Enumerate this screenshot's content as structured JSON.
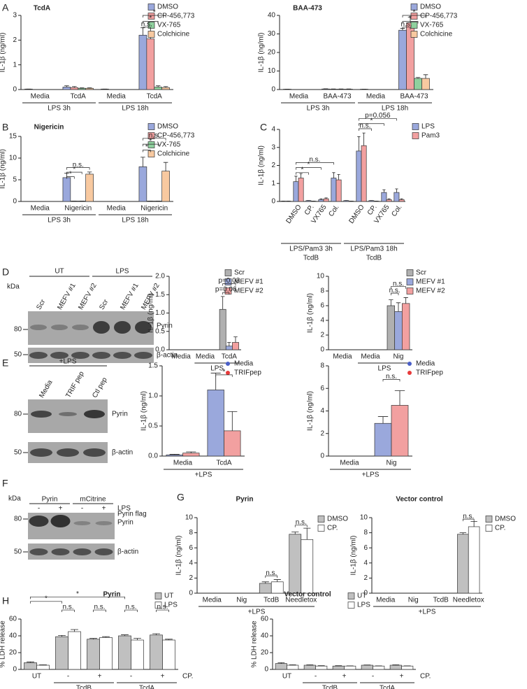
{
  "panel_letters": [
    "A",
    "B",
    "C",
    "D",
    "E",
    "F",
    "G",
    "H"
  ],
  "blots": {
    "D": {
      "headers": [
        "UT",
        "LPS"
      ],
      "lanes": [
        "Scr",
        "MEFV #1",
        "MEFV #2",
        "Scr",
        "MEFV #1",
        "MEFV #2"
      ],
      "kda_label": "kDa",
      "markers": [
        "80",
        "50"
      ],
      "bands": [
        "Pyrin",
        "β-actin"
      ]
    },
    "E": {
      "header": "+LPS",
      "lanes": [
        "Media",
        "TRIF pep",
        "Ctl pep"
      ],
      "markers": [
        "80",
        "50"
      ],
      "bands": [
        "Pyrin",
        "β-actin"
      ]
    },
    "F": {
      "headers": [
        "Pyrin",
        "mCitrine"
      ],
      "kda_label": "kDa",
      "treatment": [
        "-",
        "+",
        "-",
        "+"
      ],
      "treatment_label": "LPS",
      "markers": [
        "80",
        "50"
      ],
      "bands": [
        "Pyrin flag",
        "Pyrin",
        "β-actin"
      ]
    }
  },
  "chart_data": [
    {
      "type": "bar",
      "title": "TcdA",
      "ylabel": "IL-1β (ng/ml)",
      "ylim": [
        0,
        3
      ],
      "yticks": [
        0,
        1,
        2,
        3
      ],
      "groups": [
        {
          "label": "LPS 3h",
          "categories": [
            "Media",
            "TcdA"
          ]
        },
        {
          "label": "LPS 18h",
          "categories": [
            "Media",
            "TcdA"
          ]
        }
      ],
      "series": [
        {
          "name": "DMSO",
          "color": "#9aa8dc",
          "values": [
            0.02,
            0.1,
            0.02,
            2.2
          ],
          "errors": [
            0,
            0.05,
            0,
            0.3
          ]
        },
        {
          "name": "CP-456,773",
          "color": "#f2a0a0",
          "values": [
            0,
            0.08,
            0,
            2.05
          ],
          "errors": [
            0,
            0.04,
            0,
            0.5
          ]
        },
        {
          "name": "VX-765",
          "color": "#8fd19e",
          "values": [
            0,
            0.05,
            0,
            0.1
          ],
          "errors": [
            0,
            0.02,
            0,
            0.05
          ]
        },
        {
          "name": "Colchicine",
          "color": "#f8c9a0",
          "values": [
            0,
            0.05,
            0,
            0.08
          ],
          "errors": [
            0,
            0.02,
            0,
            0.04
          ]
        }
      ],
      "annotations": [
        "*",
        "*",
        "n.s."
      ]
    },
    {
      "type": "bar",
      "title": "BAA-473",
      "ylabel": "IL-1β (ng/ml)",
      "ylim": [
        0,
        40
      ],
      "yticks": [
        0,
        10,
        20,
        30,
        40
      ],
      "groups": [
        {
          "label": "LPS 3h",
          "categories": [
            "Media",
            "BAA-473"
          ]
        },
        {
          "label": "LPS 18h",
          "categories": [
            "Media",
            "BAA-473"
          ]
        }
      ],
      "series": [
        {
          "name": "DMSO",
          "color": "#9aa8dc",
          "values": [
            0.2,
            0.3,
            0.2,
            32
          ],
          "errors": [
            0,
            0.1,
            0,
            1
          ]
        },
        {
          "name": "CP-456,773",
          "color": "#f2a0a0",
          "values": [
            0,
            0.2,
            0,
            36
          ],
          "errors": [
            0,
            0.1,
            0,
            3
          ]
        },
        {
          "name": "VX-765",
          "color": "#8fd19e",
          "values": [
            0,
            0.2,
            0,
            6
          ],
          "errors": [
            0,
            0.1,
            0,
            0.5
          ]
        },
        {
          "name": "Colchicine",
          "color": "#f8c9a0",
          "values": [
            0,
            0.2,
            0,
            6
          ],
          "errors": [
            0,
            0.1,
            0,
            2
          ]
        }
      ],
      "annotations": [
        "*",
        "*",
        "n.s."
      ]
    },
    {
      "type": "bar",
      "title": "Nigericin",
      "ylabel": "IL-1β (ng/ml)",
      "ylim": [
        0,
        15
      ],
      "yticks": [
        0,
        5,
        10,
        15
      ],
      "groups": [
        {
          "label": "LPS 3h",
          "categories": [
            "Media",
            "Nigericin"
          ]
        },
        {
          "label": "LPS 18h",
          "categories": [
            "Media",
            "Nigericin"
          ]
        }
      ],
      "series": [
        {
          "name": "DMSO",
          "color": "#9aa8dc",
          "values": [
            0,
            5.5,
            0,
            8
          ],
          "errors": [
            0,
            1,
            0,
            2.2
          ]
        },
        {
          "name": "CP-456,773",
          "color": "#f2a0a0",
          "values": [
            0,
            0.1,
            0,
            0.1
          ],
          "errors": [
            0,
            0,
            0,
            0
          ]
        },
        {
          "name": "VX-765",
          "color": "#8fd19e",
          "values": [
            0,
            0.1,
            0,
            0.1
          ],
          "errors": [
            0,
            0,
            0,
            0
          ]
        },
        {
          "name": "Colchicine",
          "color": "#f8c9a0",
          "values": [
            0,
            6.3,
            0,
            7
          ],
          "errors": [
            0,
            0.5,
            0,
            2
          ]
        }
      ],
      "annotations": [
        "n.s.",
        "*",
        "*",
        "n.s.",
        "*",
        "*"
      ]
    },
    {
      "type": "bar",
      "ylabel": "IL-1β (ng/ml)",
      "ylim": [
        0,
        4
      ],
      "yticks": [
        0,
        1,
        2,
        3,
        4
      ],
      "groups": [
        {
          "label": "LPS/Pam3 3h",
          "sublabel": "TcdB",
          "categories": [
            null,
            "DMSO",
            "CP.",
            "VX765",
            "Col."
          ]
        },
        {
          "label": "LPS/Pam3 18h",
          "sublabel": "TcdB",
          "categories": [
            null,
            "DMSO",
            "CP.",
            "VX765",
            "Col."
          ]
        }
      ],
      "series": [
        {
          "name": "LPS",
          "color": "#9aa8dc",
          "values": [
            0.02,
            1.1,
            0.05,
            0.1,
            1.3,
            0.05,
            2.8,
            0.05,
            0.5,
            0.5
          ],
          "errors": [
            0,
            0.3,
            0,
            0.05,
            0.3,
            0,
            0.8,
            0,
            0.15,
            0.2
          ]
        },
        {
          "name": "Pam3",
          "color": "#f2a0a0",
          "values": [
            0.02,
            1.3,
            0.02,
            0.15,
            1.2,
            0.02,
            3.1,
            0.02,
            0.1,
            0.1
          ],
          "errors": [
            0,
            0.25,
            0,
            0.05,
            0.3,
            0,
            0.7,
            0,
            0.05,
            0.05
          ]
        }
      ],
      "annotations": [
        "*",
        "*",
        "n.s.",
        "p=0.056",
        "*",
        "n.s."
      ]
    },
    {
      "type": "bar",
      "ylabel": "IL-1β (ng/ml)",
      "ylim": [
        0,
        2
      ],
      "yticks": [
        {
          "value": 0,
          "label": "0.0"
        },
        {
          "value": 0.5,
          "label": "0.5"
        },
        {
          "value": 1,
          "label": "1.0"
        },
        {
          "value": 1.5,
          "label": "1.5"
        },
        {
          "value": 2,
          "label": "2.0"
        }
      ],
      "groups": [
        {
          "label": null,
          "categories": [
            "Media"
          ]
        },
        {
          "label": "LPS",
          "categories": [
            "Media",
            "TcdA"
          ]
        }
      ],
      "series": [
        {
          "name": "Scr",
          "color": "#b0b0b0",
          "values": [
            0,
            0,
            1.1
          ],
          "errors": [
            0,
            0,
            0.35
          ]
        },
        {
          "name": "MEFV #1",
          "color": "#9aa8dc",
          "values": [
            0,
            0,
            0.1
          ],
          "errors": [
            0,
            0,
            0.1
          ]
        },
        {
          "name": "MEFV #2",
          "color": "#f2a0a0",
          "values": [
            0,
            0,
            0.2
          ],
          "errors": [
            0,
            0,
            0.15
          ]
        }
      ],
      "annotations": [
        "p=0.08",
        "p=0.06"
      ]
    },
    {
      "type": "bar",
      "ylabel": "IL-1β (ng/ml)",
      "ylim": [
        0,
        10
      ],
      "yticks": [
        0,
        2,
        4,
        6,
        8,
        10
      ],
      "groups": [
        {
          "label": null,
          "categories": [
            "Media"
          ]
        },
        {
          "label": "LPS",
          "categories": [
            "Media",
            "Nig"
          ]
        }
      ],
      "series": [
        {
          "name": "Scr",
          "color": "#b0b0b0",
          "values": [
            0,
            0,
            6
          ],
          "errors": [
            0,
            0,
            0.8
          ]
        },
        {
          "name": "MEFV #1",
          "color": "#9aa8dc",
          "values": [
            0,
            0,
            5.2
          ],
          "errors": [
            0,
            0,
            1.2
          ]
        },
        {
          "name": "MEFV #2",
          "color": "#f2a0a0",
          "values": [
            0,
            0,
            6.3
          ],
          "errors": [
            0,
            0,
            0.8
          ]
        }
      ],
      "annotations": [
        "n.s.",
        "n.s."
      ]
    },
    {
      "type": "bar",
      "ylabel": "IL-1β (ng/ml)",
      "ylim": [
        0,
        1.5
      ],
      "yticks": [
        {
          "value": 0,
          "label": "0.0"
        },
        {
          "value": 0.5,
          "label": "0.5"
        },
        {
          "value": 1,
          "label": "1.0"
        },
        {
          "value": 1.5,
          "label": "1.5"
        }
      ],
      "groups": [
        {
          "label": "+LPS",
          "categories": [
            "Media",
            "TcdA"
          ]
        }
      ],
      "series": [
        {
          "name": "Media",
          "color": "#9aa8dc",
          "values": [
            0.02,
            1.1
          ],
          "errors": [
            0.01,
            0.28
          ]
        },
        {
          "name": "TRIFpep",
          "color": "#f2a0a0",
          "values": [
            0.05,
            0.42
          ],
          "errors": [
            0.02,
            0.32
          ]
        }
      ],
      "annotations": [
        "*"
      ]
    },
    {
      "type": "bar",
      "ylabel": "IL-1β (ng/ml)",
      "ylim": [
        0,
        8
      ],
      "yticks": [
        0,
        2,
        4,
        6,
        8
      ],
      "groups": [
        {
          "label": "+LPS",
          "categories": [
            "Media",
            "Nig"
          ]
        }
      ],
      "series": [
        {
          "name": "Media",
          "color": "#9aa8dc",
          "values": [
            0,
            2.9
          ],
          "errors": [
            0,
            0.6
          ]
        },
        {
          "name": "TRIFpep",
          "color": "#f2a0a0",
          "values": [
            0,
            4.5
          ],
          "errors": [
            0,
            1.3
          ]
        }
      ],
      "annotations": [
        "n.s."
      ]
    },
    {
      "type": "bar",
      "title": "Pyrin",
      "ylabel": "IL-1β (ng/ml)",
      "ylim": [
        0,
        10
      ],
      "yticks": [
        0,
        2,
        4,
        6,
        8,
        10
      ],
      "groups": [
        {
          "label": "+LPS",
          "categories": [
            "Media",
            "Nig",
            "TcdB",
            "Needletox"
          ]
        }
      ],
      "series": [
        {
          "name": "DMSO",
          "color": "#c0c0c0",
          "values": [
            0,
            0,
            1.3,
            7.8
          ],
          "errors": [
            0,
            0,
            0.2,
            0.3
          ]
        },
        {
          "name": "CP.",
          "color": "#ffffff",
          "values": [
            0,
            0,
            1.5,
            7.1
          ],
          "errors": [
            0,
            0,
            0.3,
            1.5
          ]
        }
      ],
      "annotations": [
        "n.s.",
        "n.s."
      ]
    },
    {
      "type": "bar",
      "title": "Vector control",
      "ylabel": "IL-1β (ng/ml)",
      "ylim": [
        0,
        10
      ],
      "yticks": [
        0,
        2,
        4,
        6,
        8,
        10
      ],
      "groups": [
        {
          "label": "+LPS",
          "categories": [
            "Media",
            "Nig",
            "TcdB",
            "Needletox"
          ]
        }
      ],
      "series": [
        {
          "name": "DMSO",
          "color": "#c0c0c0",
          "values": [
            0,
            0,
            0,
            7.8
          ],
          "errors": [
            0,
            0,
            0,
            0.2
          ]
        },
        {
          "name": "CP.",
          "color": "#ffffff",
          "values": [
            0,
            0,
            0,
            8.8
          ],
          "errors": [
            0,
            0,
            0,
            0.7
          ]
        }
      ],
      "annotations": [
        "n.s."
      ]
    },
    {
      "type": "bar",
      "title": "Pyrin",
      "ylabel": "% LDH release",
      "ylim": [
        0,
        60
      ],
      "yticks": [
        0,
        20,
        40,
        60
      ],
      "trailing_label": "CP.",
      "groups": [
        {
          "label": null,
          "categories": [
            "UT"
          ]
        },
        {
          "label": "TcdB",
          "categories": [
            "-",
            "+"
          ]
        },
        {
          "label": "TcdA",
          "categories": [
            "-",
            "+"
          ]
        }
      ],
      "series": [
        {
          "name": "UT",
          "color": "#c0c0c0",
          "values": [
            8,
            39,
            36,
            40,
            41
          ],
          "errors": [
            1,
            1.5,
            1,
            1.2,
            1.5
          ]
        },
        {
          "name": "LPS",
          "color": "#ffffff",
          "values": [
            5,
            45,
            38,
            35,
            35
          ],
          "errors": [
            0.5,
            2.5,
            1,
            2,
            1
          ]
        }
      ],
      "annotations": [
        "*",
        "*",
        "n.s.",
        "n.s.",
        "n.s.",
        "n.s."
      ]
    },
    {
      "type": "bar",
      "title": "Vector control",
      "ylabel": "% LDH release",
      "ylim": [
        0,
        60
      ],
      "yticks": [
        0,
        20,
        40,
        60
      ],
      "trailing_label": "CP.",
      "groups": [
        {
          "label": null,
          "categories": [
            "UT"
          ]
        },
        {
          "label": "TcdB",
          "categories": [
            "-",
            "+"
          ]
        },
        {
          "label": "TcdA",
          "categories": [
            "-",
            "+"
          ]
        }
      ],
      "series": [
        {
          "name": "UT",
          "color": "#c0c0c0",
          "values": [
            7,
            5,
            4,
            5,
            5
          ],
          "errors": [
            1,
            0.5,
            0.5,
            0.3,
            0.5
          ]
        },
        {
          "name": "LPS",
          "color": "#ffffff",
          "values": [
            5,
            4,
            4,
            4,
            4
          ],
          "errors": [
            0.5,
            0.5,
            0.3,
            0.3,
            0.3
          ]
        }
      ]
    }
  ]
}
